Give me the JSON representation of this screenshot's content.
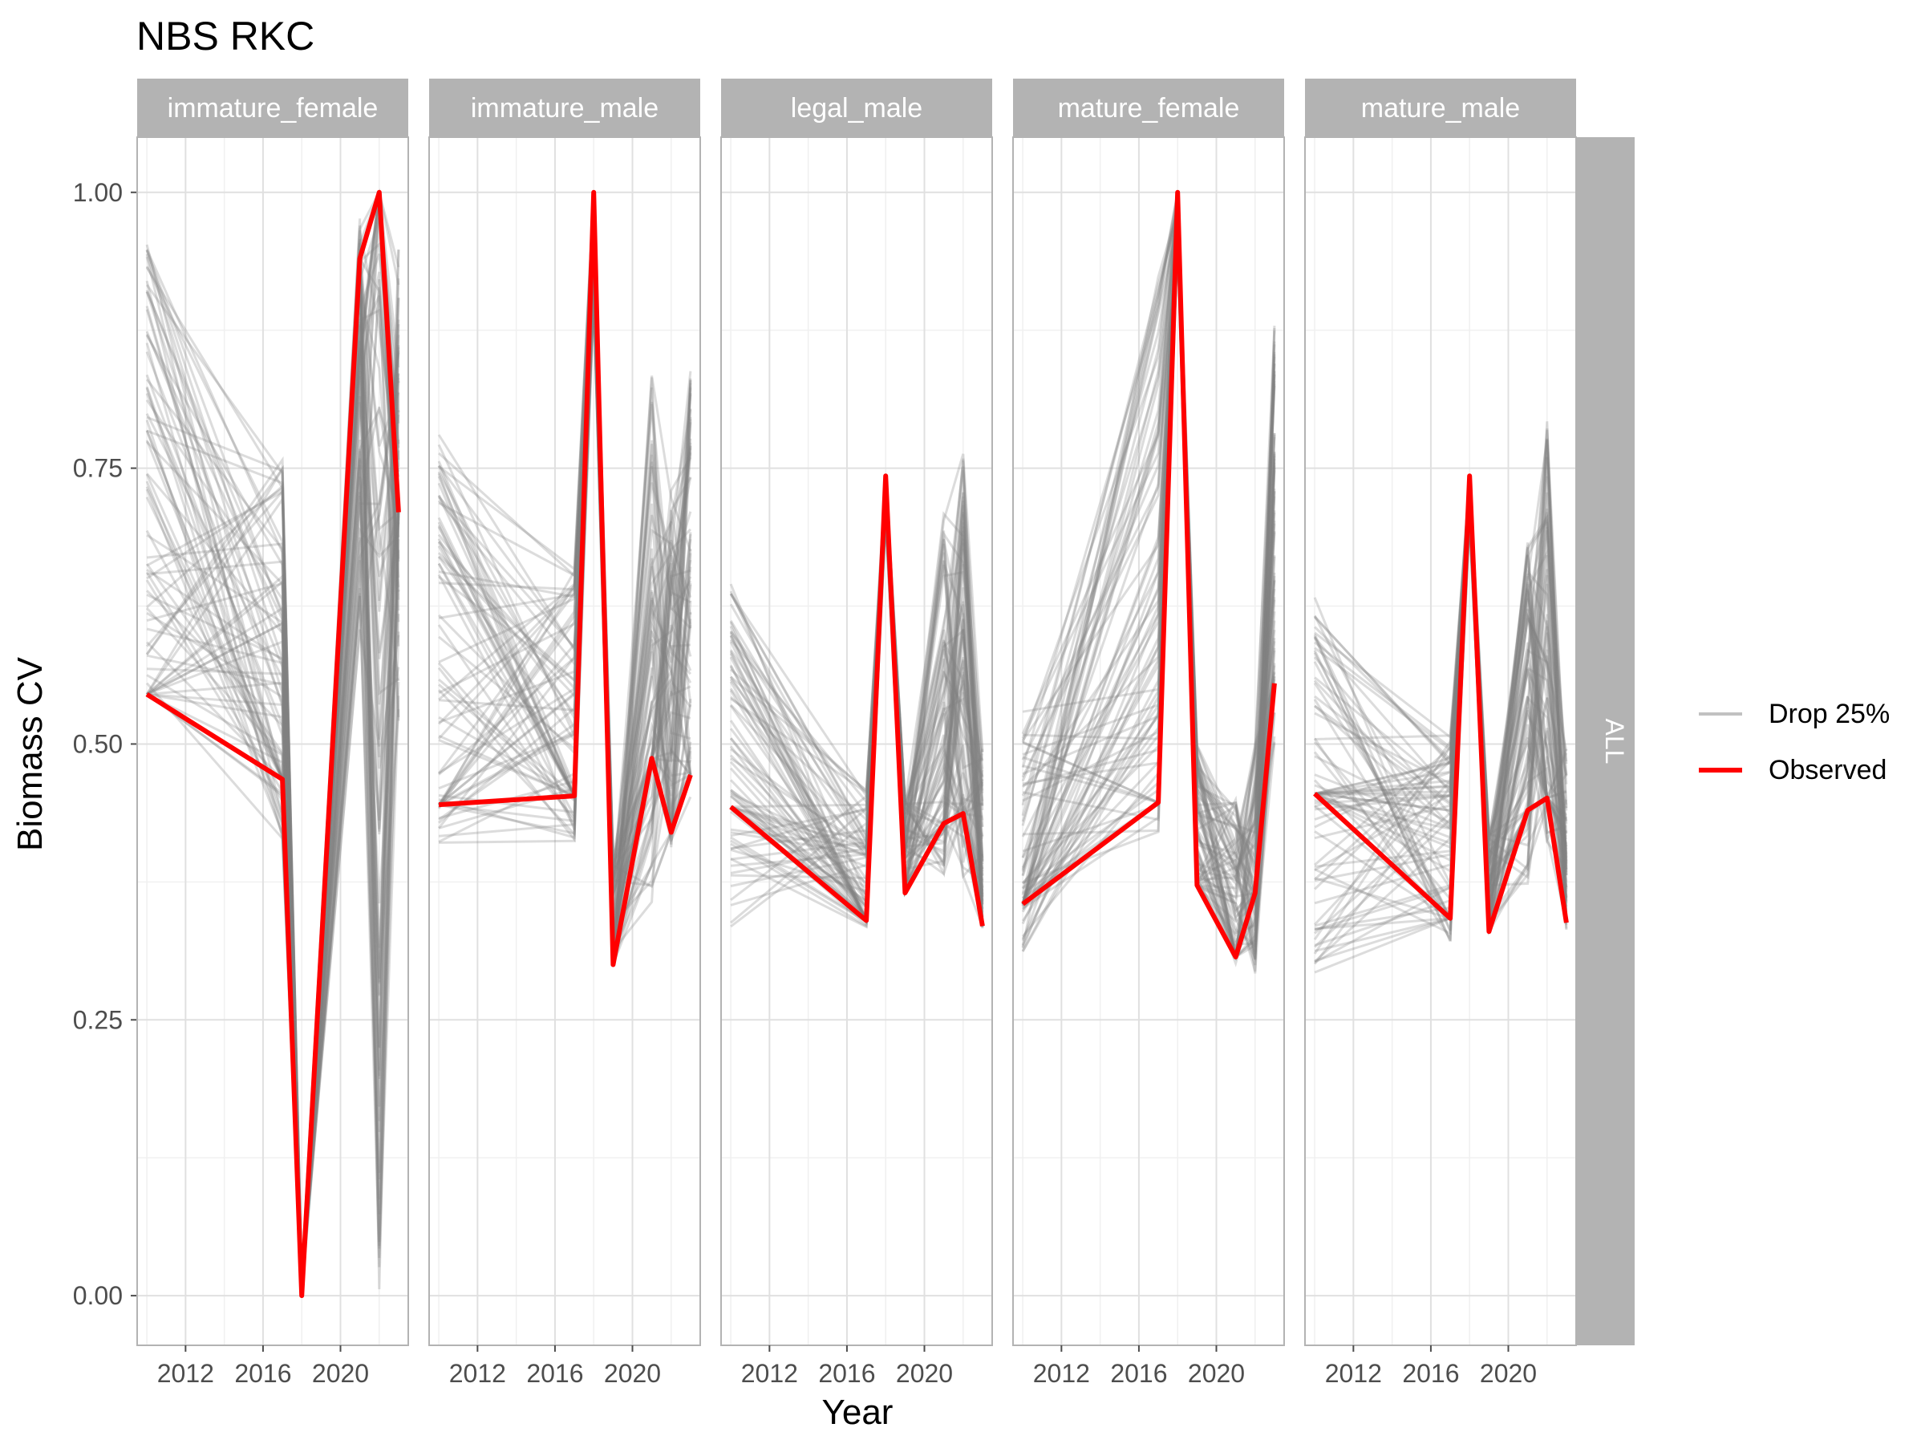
{
  "chart_data": {
    "type": "line",
    "title": "NBS RKC",
    "xlabel": "Year",
    "ylabel": "Biomass CV",
    "x_ticks": [
      2012,
      2016,
      2020
    ],
    "x_range": [
      2009.5,
      2023.5
    ],
    "y_ticks": [
      0.0,
      0.25,
      0.5,
      0.75,
      1.0
    ],
    "y_tick_labels": [
      "0.00",
      "0.25",
      "0.50",
      "0.75",
      "1.00"
    ],
    "ylim": [
      -0.045,
      1.05
    ],
    "grid": true,
    "legend": {
      "position": "right",
      "entries": [
        {
          "label": "Drop 25%",
          "color": "#a6a6a6"
        },
        {
          "label": "Observed",
          "color": "#ff0000"
        }
      ]
    },
    "facet_row_strip": "ALL",
    "facets": [
      {
        "name": "immature_female",
        "observed": {
          "x": [
            2010,
            2017,
            2018,
            2021,
            2022,
            2023
          ],
          "y": [
            0.545,
            0.468,
            0.0,
            0.94,
            1.0,
            0.71
          ]
        },
        "drop25_range": [
          {
            "x": 2010,
            "min": 0.53,
            "max": 0.96
          },
          {
            "x": 2017,
            "min": 0.41,
            "max": 0.76
          },
          {
            "x": 2018,
            "min": 0.0,
            "max": 0.02
          },
          {
            "x": 2021,
            "min": 0.6,
            "max": 1.0
          },
          {
            "x": 2022,
            "min": 0.0,
            "max": 1.0
          },
          {
            "x": 2023,
            "min": 0.51,
            "max": 0.95
          }
        ]
      },
      {
        "name": "immature_male",
        "observed": {
          "x": [
            2010,
            2017,
            2018,
            2019,
            2021,
            2022,
            2023
          ],
          "y": [
            0.445,
            0.453,
            1.0,
            0.3,
            0.487,
            0.42,
            0.472
          ]
        },
        "drop25_range": [
          {
            "x": 2010,
            "min": 0.4,
            "max": 0.79
          },
          {
            "x": 2017,
            "min": 0.41,
            "max": 0.66
          },
          {
            "x": 2018,
            "min": 0.9,
            "max": 1.0
          },
          {
            "x": 2019,
            "min": 0.3,
            "max": 0.4
          },
          {
            "x": 2021,
            "min": 0.35,
            "max": 0.84
          },
          {
            "x": 2022,
            "min": 0.4,
            "max": 0.73
          },
          {
            "x": 2023,
            "min": 0.44,
            "max": 0.84
          }
        ]
      },
      {
        "name": "legal_male",
        "observed": {
          "x": [
            2010,
            2017,
            2018,
            2019,
            2021,
            2022,
            2023
          ],
          "y": [
            0.443,
            0.34,
            0.743,
            0.365,
            0.428,
            0.437,
            0.335
          ]
        },
        "drop25_range": [
          {
            "x": 2010,
            "min": 0.33,
            "max": 0.65
          },
          {
            "x": 2017,
            "min": 0.33,
            "max": 0.46
          },
          {
            "x": 2018,
            "min": 0.7,
            "max": 0.74
          },
          {
            "x": 2019,
            "min": 0.36,
            "max": 0.45
          },
          {
            "x": 2021,
            "min": 0.38,
            "max": 0.71
          },
          {
            "x": 2022,
            "min": 0.38,
            "max": 0.77
          },
          {
            "x": 2023,
            "min": 0.33,
            "max": 0.5
          }
        ]
      },
      {
        "name": "mature_female",
        "observed": {
          "x": [
            2010,
            2017,
            2018,
            2019,
            2021,
            2022,
            2023
          ],
          "y": [
            0.355,
            0.447,
            1.0,
            0.372,
            0.307,
            0.365,
            0.555
          ]
        },
        "drop25_range": [
          {
            "x": 2010,
            "min": 0.31,
            "max": 0.53
          },
          {
            "x": 2017,
            "min": 0.42,
            "max": 0.94
          },
          {
            "x": 2018,
            "min": 0.95,
            "max": 1.0
          },
          {
            "x": 2019,
            "min": 0.37,
            "max": 0.5
          },
          {
            "x": 2021,
            "min": 0.3,
            "max": 0.45
          },
          {
            "x": 2022,
            "min": 0.29,
            "max": 0.5
          },
          {
            "x": 2023,
            "min": 0.5,
            "max": 0.88
          }
        ]
      },
      {
        "name": "mature_male",
        "observed": {
          "x": [
            2010,
            2017,
            2018,
            2019,
            2021,
            2022,
            2023
          ],
          "y": [
            0.455,
            0.342,
            0.743,
            0.33,
            0.44,
            0.451,
            0.338
          ]
        },
        "drop25_range": [
          {
            "x": 2010,
            "min": 0.29,
            "max": 0.64
          },
          {
            "x": 2017,
            "min": 0.32,
            "max": 0.51
          },
          {
            "x": 2018,
            "min": 0.7,
            "max": 0.74
          },
          {
            "x": 2019,
            "min": 0.33,
            "max": 0.42
          },
          {
            "x": 2021,
            "min": 0.37,
            "max": 0.69
          },
          {
            "x": 2022,
            "min": 0.4,
            "max": 0.8
          },
          {
            "x": 2023,
            "min": 0.33,
            "max": 0.5
          }
        ]
      }
    ]
  }
}
